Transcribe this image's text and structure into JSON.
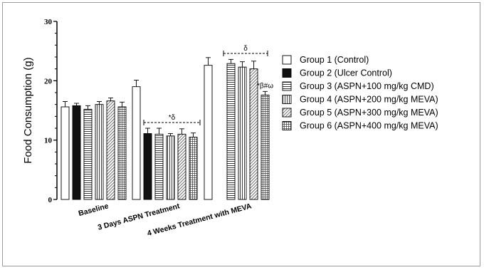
{
  "chart_data": {
    "type": "bar",
    "title": "",
    "xlabel": "",
    "ylabel": "Food Consumption (g)",
    "ylim": [
      0,
      30
    ],
    "yticks": [
      "0",
      "10",
      "20",
      "30"
    ],
    "categories": [
      "Baseline",
      "3 Days ASPN Treatment",
      "4 Weeks Treatment with MEVA"
    ],
    "series": [
      {
        "name": "Group 1 (Control)",
        "pattern": "white",
        "values": [
          15.6,
          19.0,
          22.6
        ],
        "errors": [
          0.9,
          1.1,
          1.3
        ]
      },
      {
        "name": "Group 2 (Ulcer Control)",
        "pattern": "black",
        "values": [
          15.8,
          11.1,
          0
        ],
        "errors": [
          0.4,
          0.9,
          0
        ]
      },
      {
        "name": "Group 3 (ASPN+100 mg/kg CMD)",
        "pattern": "hlines",
        "values": [
          15.2,
          11.0,
          22.9
        ],
        "errors": [
          0.6,
          1.0,
          0.7
        ]
      },
      {
        "name": "Group 4 (ASPN+200 mg/kg MEVA)",
        "pattern": "vlines",
        "values": [
          16.0,
          10.7,
          22.3
        ],
        "errors": [
          0.5,
          0.4,
          0.9
        ]
      },
      {
        "name": "Group 5 (ASPN+300 mg/kg MEVA)",
        "pattern": "diag",
        "values": [
          16.6,
          11.0,
          22.0
        ],
        "errors": [
          0.5,
          0.9,
          1.3
        ]
      },
      {
        "name": "Group 6 (ASPN+400 mg/kg MEVA)",
        "pattern": "grid",
        "values": [
          15.6,
          10.5,
          17.6
        ],
        "errors": [
          0.8,
          0.7,
          0.6
        ]
      }
    ],
    "annotations": {
      "bracket_day3": "*δ",
      "bracket_week4": "δ",
      "group6_week4": "*β#ω"
    },
    "legend_position": "right",
    "grid": false
  }
}
